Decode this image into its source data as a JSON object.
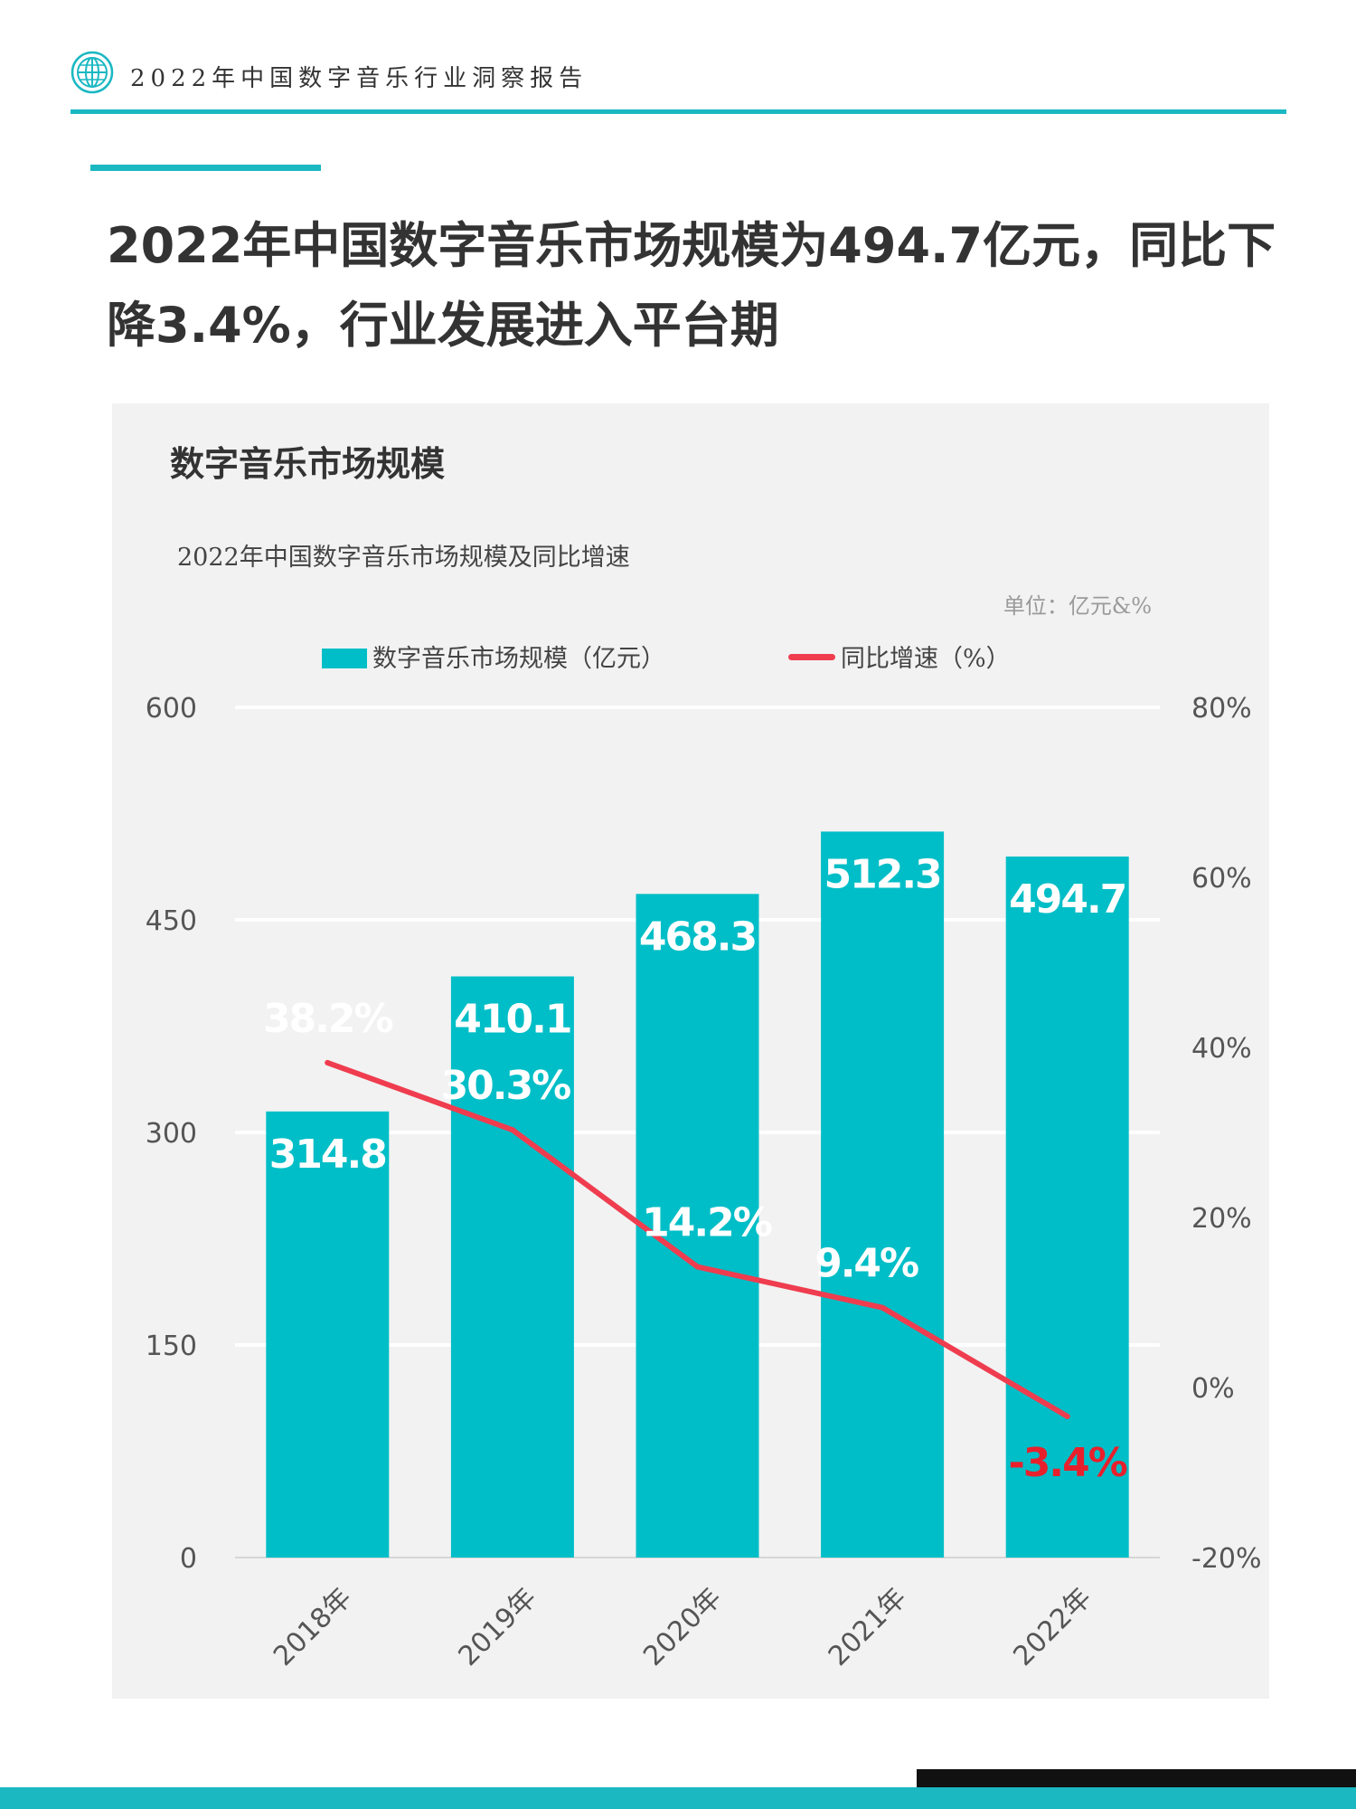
{
  "header": {
    "title": "2022年中国数字音乐行业洞察报告"
  },
  "main_title_line1": "2022年中国数字音乐市场规模为494.7亿元，同比下",
  "main_title_line2": "降3.4%，行业发展进入平台期",
  "panel_heading": "数字音乐市场规模",
  "colors": {
    "bar": "#00bec7",
    "line": "#ef3d4f",
    "accent": "#1bb8c2",
    "negative_label": "#e8202c"
  },
  "chart_data": {
    "type": "bar+line",
    "title": "2022年中国数字音乐市场规模及同比增速",
    "unit": "单位：亿元&%",
    "categories": [
      "2018年",
      "2019年",
      "2020年",
      "2021年",
      "2022年"
    ],
    "series": [
      {
        "name": "数字音乐市场规模（亿元）",
        "type": "bar",
        "axis": "left",
        "values": [
          314.8,
          410.1,
          468.3,
          512.3,
          494.7
        ],
        "labels": [
          "314.8",
          "410.1",
          "468.3",
          "512.3",
          "494.7"
        ]
      },
      {
        "name": "同比增速（%）",
        "type": "line",
        "axis": "right",
        "values": [
          38.2,
          30.3,
          14.2,
          9.4,
          -3.4
        ],
        "labels": [
          "38.2%",
          "30.3%",
          "14.2%",
          "9.4%",
          "-3.4%"
        ]
      }
    ],
    "left_axis": {
      "min": 0,
      "max": 600,
      "ticks": [
        "0",
        "150",
        "300",
        "450",
        "600"
      ]
    },
    "right_axis": {
      "min": -20,
      "max": 80,
      "ticks": [
        "-20%",
        "0%",
        "20%",
        "40%",
        "60%",
        "80%"
      ]
    },
    "grid": true,
    "legend_position": "top"
  }
}
